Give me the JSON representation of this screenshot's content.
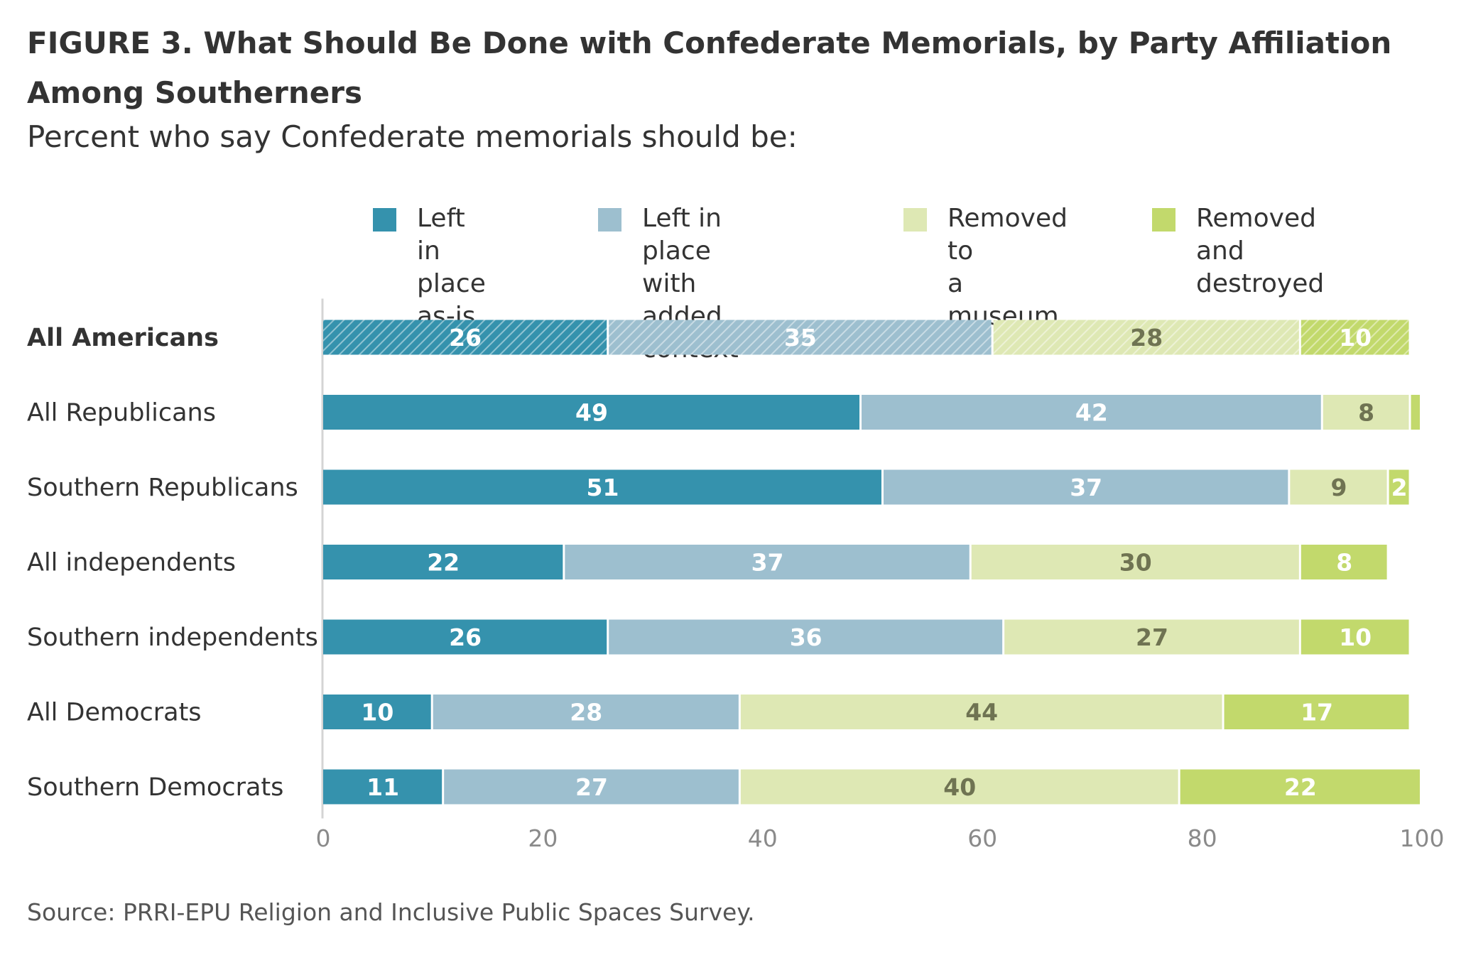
{
  "title": "FIGURE 3.  What Should Be Done with Confederate Memorials, by Party Affiliation Among Southerners",
  "subtitle": "Percent who say Confederate memorials should be:",
  "source": "Source: PRRI-EPU Religion and Inclusive Public Spaces Survey.",
  "legend": [
    {
      "label": "Left in\nplace as-is",
      "color": "#3592ad"
    },
    {
      "label": "Left in place with\nadded context",
      "color": "#9dbfcf"
    },
    {
      "label": "Removed to\na museum",
      "color": "#dee8b4"
    },
    {
      "label": "Removed and\ndestroyed",
      "color": "#c2d96c"
    }
  ],
  "chart_data": {
    "type": "bar",
    "orientation": "horizontal",
    "stacked": true,
    "categories": [
      "All Americans",
      "All Republicans",
      "Southern Republicans",
      "All independents",
      "Southern independents",
      "All Democrats",
      "Southern Democrats"
    ],
    "bold_categories": [
      "All Americans"
    ],
    "hatched_categories": [
      "All Americans"
    ],
    "series": [
      {
        "name": "Left in place as-is",
        "color": "#3592ad",
        "label_color": "#ffffff",
        "values": [
          26,
          49,
          51,
          22,
          26,
          10,
          11
        ],
        "labels": [
          "26",
          "49",
          "51",
          "22",
          "26",
          "10",
          "11"
        ]
      },
      {
        "name": "Left in place with added context",
        "color": "#9dbfcf",
        "label_color": "#ffffff",
        "values": [
          35,
          42,
          37,
          37,
          36,
          28,
          27
        ],
        "labels": [
          "35",
          "42",
          "37",
          "37",
          "36",
          "28",
          "27"
        ]
      },
      {
        "name": "Removed to a museum",
        "color": "#dee8b4",
        "label_color": "#6f7352",
        "values": [
          28,
          8,
          9,
          30,
          27,
          44,
          40
        ],
        "labels": [
          "28",
          "8",
          "9",
          "30",
          "27",
          "44",
          "40"
        ]
      },
      {
        "name": "Removed and destroyed",
        "color": "#c2d96c",
        "label_color": "#ffffff",
        "values": [
          10,
          1,
          2,
          8,
          10,
          17,
          22
        ],
        "labels": [
          "10",
          "",
          "2",
          "8",
          "10",
          "17",
          "22"
        ]
      }
    ],
    "xlim": [
      0,
      100
    ],
    "xticks": [
      0,
      20,
      40,
      60,
      80,
      100
    ],
    "grid": false,
    "legend_position": "top"
  }
}
